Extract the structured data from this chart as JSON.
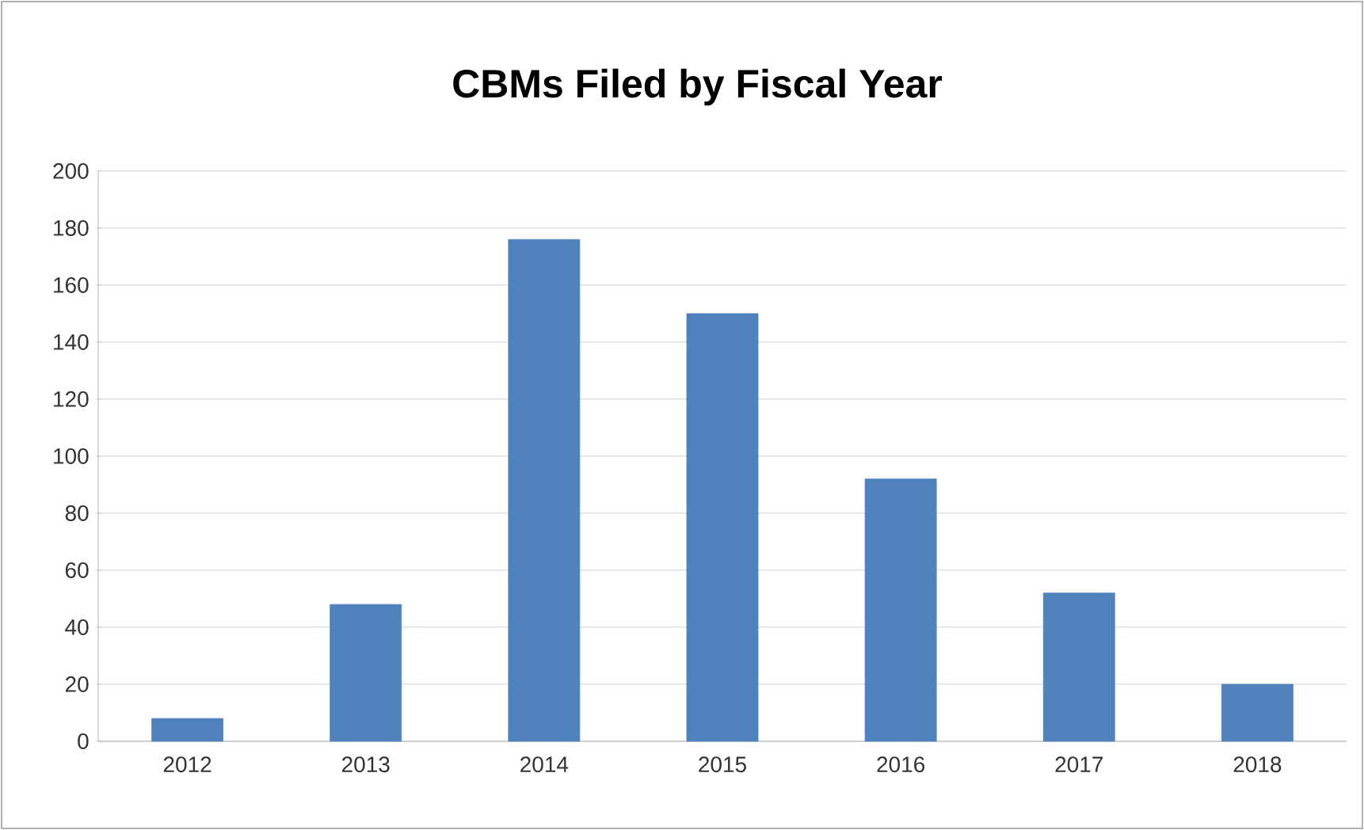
{
  "chart_data": {
    "type": "bar",
    "title": "CBMs Filed by Fiscal Year",
    "categories": [
      "2012",
      "2013",
      "2014",
      "2015",
      "2016",
      "2017",
      "2018"
    ],
    "values": [
      8,
      48,
      176,
      150,
      92,
      52,
      20
    ],
    "color": "#4f81bd",
    "ylim": [
      0,
      200
    ],
    "yticks": [
      0,
      20,
      40,
      60,
      80,
      100,
      120,
      140,
      160,
      180,
      200
    ],
    "grid": "y"
  }
}
